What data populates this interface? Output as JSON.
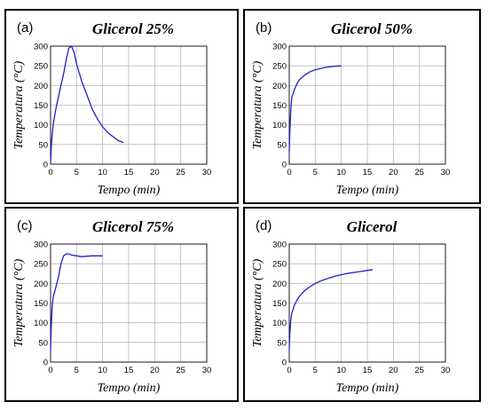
{
  "chart_data": [
    {
      "type": "line",
      "panel_letter": "(a)",
      "title": "Glicerol 25%",
      "xlabel": "Tempo (min)",
      "ylabel": "Temperatura (°C)",
      "xlim": [
        0,
        30
      ],
      "ylim": [
        0,
        300
      ],
      "xticks": [
        0,
        5,
        10,
        15,
        20,
        25,
        30
      ],
      "yticks": [
        0,
        50,
        100,
        150,
        200,
        250,
        300
      ],
      "grid": true,
      "color": "#2020c8",
      "series": [
        {
          "x": [
            0,
            0.2,
            0.5,
            1,
            1.5,
            2,
            2.5,
            3,
            3.5,
            4,
            4.5,
            5,
            6,
            7,
            8,
            9,
            10,
            11,
            12,
            13,
            14
          ],
          "y": [
            5,
            60,
            100,
            140,
            170,
            200,
            230,
            265,
            295,
            300,
            285,
            255,
            210,
            175,
            140,
            115,
            95,
            80,
            70,
            60,
            55
          ]
        }
      ]
    },
    {
      "type": "line",
      "panel_letter": "(b)",
      "title": "Glicerol 50%",
      "xlabel": "Tempo (min)",
      "ylabel": "Temperatura (°C)",
      "xlim": [
        0,
        30
      ],
      "ylim": [
        0,
        300
      ],
      "xticks": [
        0,
        5,
        10,
        15,
        20,
        25,
        30
      ],
      "yticks": [
        0,
        50,
        100,
        150,
        200,
        250,
        300
      ],
      "grid": true,
      "color": "#2020c8",
      "series": [
        {
          "x": [
            0,
            0.1,
            0.3,
            0.5,
            1,
            1.5,
            2,
            3,
            4,
            5,
            6,
            7,
            8,
            9,
            10
          ],
          "y": [
            30,
            80,
            140,
            170,
            190,
            205,
            215,
            227,
            235,
            240,
            243,
            246,
            248,
            249,
            250
          ]
        }
      ]
    },
    {
      "type": "line",
      "panel_letter": "(c)",
      "title": "Glicerol 75%",
      "xlabel": "Tempo (min)",
      "ylabel": "Temperatura (°C)",
      "xlim": [
        0,
        30
      ],
      "ylim": [
        0,
        300
      ],
      "xticks": [
        0,
        5,
        10,
        15,
        20,
        25,
        30
      ],
      "yticks": [
        0,
        50,
        100,
        150,
        200,
        250,
        300
      ],
      "grid": true,
      "color": "#2020c8",
      "series": [
        {
          "x": [
            0,
            0.1,
            0.3,
            0.5,
            1,
            1.5,
            2,
            2.5,
            3,
            3.5,
            4,
            5,
            6,
            7,
            8,
            9,
            10
          ],
          "y": [
            30,
            80,
            140,
            165,
            190,
            215,
            250,
            270,
            275,
            275,
            272,
            270,
            268,
            269,
            270,
            270,
            270
          ]
        }
      ]
    },
    {
      "type": "line",
      "panel_letter": "(d)",
      "title": "Glicerol",
      "xlabel": "Tempo (min)",
      "ylabel": "Temperatura (°C)",
      "xlim": [
        0,
        30
      ],
      "ylim": [
        0,
        300
      ],
      "xticks": [
        0,
        5,
        10,
        15,
        20,
        25,
        30
      ],
      "yticks": [
        0,
        50,
        100,
        150,
        200,
        250,
        300
      ],
      "grid": true,
      "color": "#2020c8",
      "series": [
        {
          "x": [
            0,
            0.1,
            0.3,
            0.5,
            1,
            1.5,
            2,
            3,
            4,
            5,
            6,
            7,
            8,
            9,
            10,
            11,
            12,
            13,
            14,
            15,
            16
          ],
          "y": [
            30,
            70,
            110,
            125,
            145,
            158,
            168,
            182,
            192,
            200,
            206,
            211,
            215,
            219,
            222,
            225,
            227,
            229,
            231,
            233,
            235
          ]
        }
      ]
    }
  ]
}
